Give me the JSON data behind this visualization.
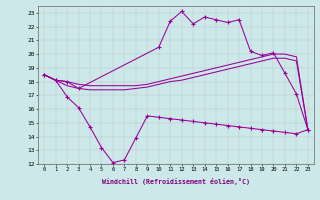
{
  "xlabel": "Windchill (Refroidissement éolien,°C)",
  "background_color": "#cde8e8",
  "line_color": "#990099",
  "ylim": [
    12,
    23.5
  ],
  "yticks": [
    12,
    13,
    14,
    15,
    16,
    17,
    18,
    19,
    20,
    21,
    22,
    23
  ],
  "xticks": [
    0,
    1,
    2,
    3,
    4,
    5,
    6,
    7,
    8,
    9,
    10,
    11,
    12,
    13,
    14,
    15,
    16,
    17,
    18,
    19,
    20,
    21,
    22,
    23
  ],
  "series_peak": {
    "x": [
      0,
      1,
      2,
      3,
      10,
      11,
      12,
      13,
      14,
      15,
      16,
      17,
      18,
      19,
      20,
      21,
      22,
      23
    ],
    "y": [
      18.5,
      18.1,
      18.0,
      17.5,
      20.5,
      22.4,
      23.1,
      22.2,
      22.7,
      22.5,
      22.3,
      22.5,
      20.2,
      19.9,
      20.1,
      18.6,
      17.1,
      14.5
    ]
  },
  "series_flat_hi": {
    "x": [
      0,
      1,
      2,
      3,
      4,
      5,
      6,
      7,
      8,
      9,
      10,
      11,
      12,
      13,
      14,
      15,
      16,
      17,
      18,
      19,
      20,
      21,
      22,
      23
    ],
    "y": [
      18.5,
      18.1,
      18.0,
      17.8,
      17.7,
      17.7,
      17.7,
      17.7,
      17.7,
      17.8,
      18.0,
      18.2,
      18.4,
      18.6,
      18.8,
      19.0,
      19.2,
      19.4,
      19.6,
      19.8,
      20.0,
      20.0,
      19.8,
      14.5
    ]
  },
  "series_flat_lo": {
    "x": [
      0,
      1,
      2,
      3,
      4,
      5,
      6,
      7,
      8,
      9,
      10,
      11,
      12,
      13,
      14,
      15,
      16,
      17,
      18,
      19,
      20,
      21,
      22,
      23
    ],
    "y": [
      18.5,
      18.1,
      17.7,
      17.5,
      17.4,
      17.4,
      17.4,
      17.4,
      17.5,
      17.6,
      17.8,
      18.0,
      18.1,
      18.3,
      18.5,
      18.7,
      18.9,
      19.1,
      19.3,
      19.5,
      19.7,
      19.7,
      19.5,
      14.5
    ]
  },
  "series_dip": {
    "x": [
      0,
      1,
      2,
      3,
      4,
      5,
      6,
      7,
      8,
      9,
      10,
      11,
      12,
      13,
      14,
      15,
      16,
      17,
      18,
      19,
      20,
      21,
      22,
      23
    ],
    "y": [
      18.5,
      18.1,
      16.9,
      16.1,
      14.7,
      13.2,
      12.1,
      12.3,
      13.9,
      15.5,
      15.4,
      15.3,
      15.2,
      15.1,
      15.0,
      14.9,
      14.8,
      14.7,
      14.6,
      14.5,
      14.4,
      14.3,
      14.2,
      14.5
    ]
  },
  "grid_color": "#aaaaaa"
}
